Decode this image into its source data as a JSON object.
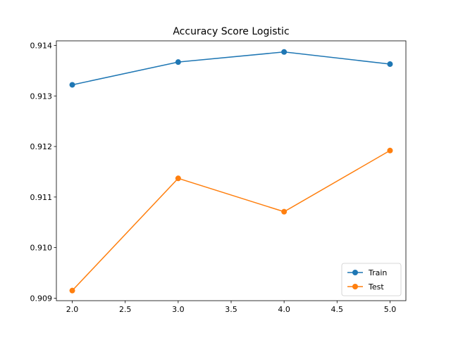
{
  "chart_data": {
    "type": "line",
    "title": "Accuracy Score Logistic",
    "xlabel": "",
    "ylabel": "",
    "x": [
      2.0,
      3.0,
      4.0,
      5.0
    ],
    "xlim": [
      1.85,
      5.15
    ],
    "ylim": [
      0.90895,
      0.91409
    ],
    "xticks": [
      2.0,
      2.5,
      3.0,
      3.5,
      4.0,
      4.5,
      5.0
    ],
    "xtick_labels": [
      "2.0",
      "2.5",
      "3.0",
      "3.5",
      "4.0",
      "4.5",
      "5.0"
    ],
    "yticks": [
      0.909,
      0.91,
      0.911,
      0.912,
      0.913,
      0.914
    ],
    "ytick_labels": [
      "0.909",
      "0.910",
      "0.911",
      "0.912",
      "0.913",
      "0.914"
    ],
    "grid": false,
    "legend_position": "bottom-right",
    "series": [
      {
        "name": "Train",
        "color": "#1f77b4",
        "marker": "circle",
        "values": [
          0.91322,
          0.91367,
          0.91387,
          0.91363
        ]
      },
      {
        "name": "Test",
        "color": "#ff7f0e",
        "marker": "circle",
        "values": [
          0.90915,
          0.91137,
          0.91071,
          0.91192
        ]
      }
    ]
  }
}
